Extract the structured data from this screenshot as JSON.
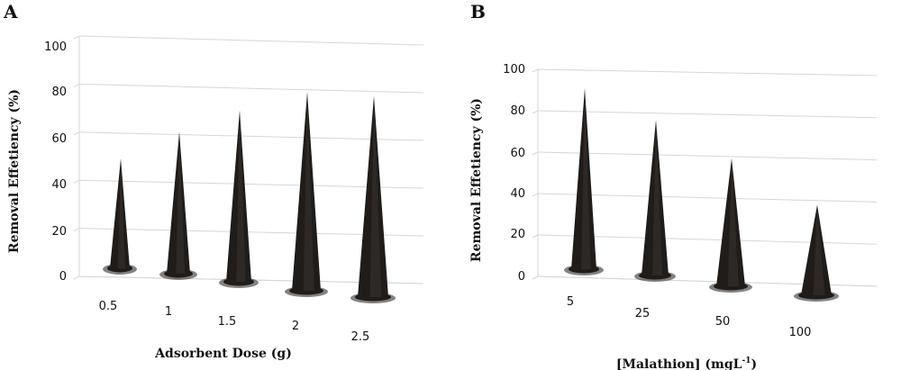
{
  "chart_data": [
    {
      "type": "bar",
      "panel_label": "A",
      "title": "",
      "xlabel": "Adsorbent Dose (g)",
      "ylabel": "Removal Effetiency (%)",
      "categories": [
        "0.5",
        "1",
        "1.5",
        "2",
        "2.5"
      ],
      "values": [
        48,
        62,
        75,
        87,
        88
      ],
      "ylim": [
        0,
        100
      ],
      "yticks": [
        "0",
        "20",
        "40",
        "60",
        "80",
        "100"
      ],
      "grid": true,
      "mark_style": "3d-cone",
      "mark_color": "#1f1c1a"
    },
    {
      "type": "bar",
      "panel_label": "B",
      "title": "",
      "xlabel": "[Malathion] (mgL",
      "xlabel_sup": "-1",
      "xlabel_end": ")",
      "ylabel": "Removal Effetiency (%)",
      "categories": [
        "5",
        "25",
        "50",
        "100"
      ],
      "values": [
        92,
        79,
        65,
        46
      ],
      "ylim": [
        0,
        100
      ],
      "yticks": [
        "0",
        "20",
        "40",
        "60",
        "80",
        "100"
      ],
      "grid": true,
      "mark_style": "3d-cone",
      "mark_color": "#1f1c1a"
    }
  ]
}
